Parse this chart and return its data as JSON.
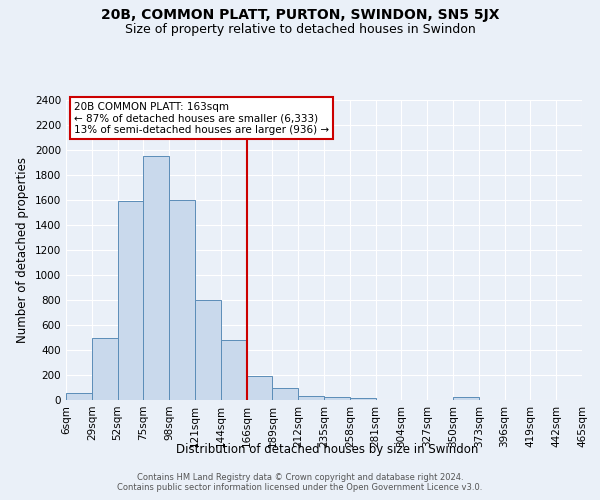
{
  "title": "20B, COMMON PLATT, PURTON, SWINDON, SN5 5JX",
  "subtitle": "Size of property relative to detached houses in Swindon",
  "xlabel": "Distribution of detached houses by size in Swindon",
  "ylabel": "Number of detached properties",
  "footnote1": "Contains HM Land Registry data © Crown copyright and database right 2024.",
  "footnote2": "Contains public sector information licensed under the Open Government Licence v3.0.",
  "bins": [
    "6sqm",
    "29sqm",
    "52sqm",
    "75sqm",
    "98sqm",
    "121sqm",
    "144sqm",
    "166sqm",
    "189sqm",
    "212sqm",
    "235sqm",
    "258sqm",
    "281sqm",
    "304sqm",
    "327sqm",
    "350sqm",
    "373sqm",
    "396sqm",
    "419sqm",
    "442sqm",
    "465sqm"
  ],
  "values": [
    60,
    500,
    1590,
    1950,
    1600,
    800,
    480,
    195,
    95,
    35,
    25,
    20,
    0,
    0,
    0,
    25,
    0,
    0,
    0,
    0
  ],
  "bar_color": "#c9d9ec",
  "bar_edge_color": "#5b8db8",
  "highlight_bin_index": 7,
  "vline_color": "#cc0000",
  "annotation_text": "20B COMMON PLATT: 163sqm\n← 87% of detached houses are smaller (6,333)\n13% of semi-detached houses are larger (936) →",
  "annotation_box_color": "#ffffff",
  "annotation_box_edge": "#cc0000",
  "ylim": [
    0,
    2400
  ],
  "yticks": [
    0,
    200,
    400,
    600,
    800,
    1000,
    1200,
    1400,
    1600,
    1800,
    2000,
    2200,
    2400
  ],
  "bg_color": "#eaf0f8",
  "grid_color": "#ffffff",
  "title_fontsize": 10,
  "subtitle_fontsize": 9,
  "axis_label_fontsize": 8.5,
  "tick_fontsize": 7.5,
  "footnote_fontsize": 6
}
